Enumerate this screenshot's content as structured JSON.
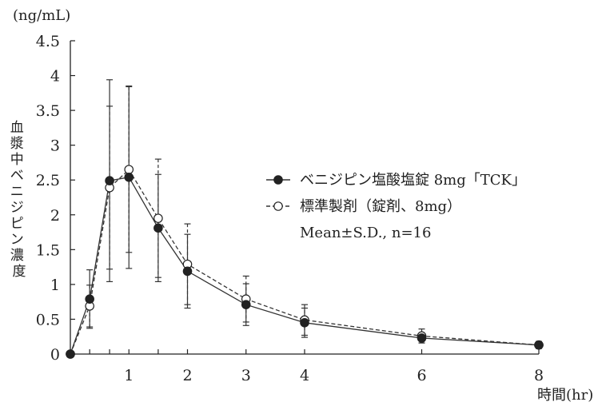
{
  "chart_data": {
    "type": "line",
    "y_unit": "(ng/mL)",
    "ylabel": "血漿中ベニジピン濃度",
    "xlabel": "時間(hr)",
    "xlim": [
      0,
      8
    ],
    "ylim": [
      0,
      4.5
    ],
    "x_ticks": [
      1,
      2,
      3,
      4,
      6,
      8
    ],
    "x_tick_labels": [
      "1",
      "2",
      "3",
      "4",
      "6",
      "8"
    ],
    "y_ticks": [
      0,
      0.5,
      1,
      1.5,
      2,
      2.5,
      3,
      3.5,
      4,
      4.5
    ],
    "y_tick_labels": [
      "0",
      "0.5",
      "1",
      "1.5",
      "2",
      "2.5",
      "3",
      "3.5",
      "4",
      "4.5"
    ],
    "grid": false,
    "legend_position": "right",
    "legend_note": "Mean±S.D., n=16",
    "x": [
      0,
      0.33,
      0.67,
      1,
      1.5,
      2,
      3,
      4,
      6,
      8
    ],
    "series": [
      {
        "name": "ベニジピン塩酸塩錠 8mg「TCK」",
        "marker": "filled-circle",
        "line_style": "solid",
        "values": [
          0,
          0.79,
          2.49,
          2.54,
          1.81,
          1.19,
          0.71,
          0.45,
          0.23,
          0.13
        ],
        "sd": [
          0,
          0.42,
          1.45,
          1.31,
          0.77,
          0.53,
          0.3,
          0.21,
          0.07,
          0.05
        ]
      },
      {
        "name": "標準製剤（錠剤、8mg）",
        "marker": "open-circle",
        "line_style": "dashed",
        "values": [
          0,
          0.69,
          2.39,
          2.65,
          1.95,
          1.29,
          0.79,
          0.49,
          0.26,
          0.13
        ],
        "sd": [
          0,
          0.3,
          1.17,
          1.19,
          0.85,
          0.58,
          0.33,
          0.22,
          0.1,
          0.05
        ]
      }
    ]
  }
}
